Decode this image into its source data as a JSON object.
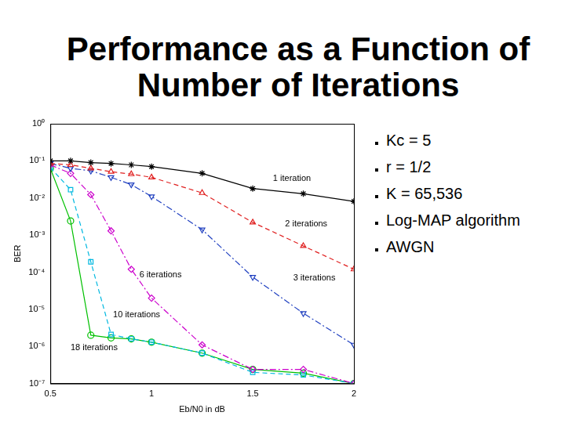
{
  "slide": {
    "title": "Performance as a Function of Number of Iterations",
    "bullets": [
      "Kc = 5",
      "r = 1/2",
      "K = 65,536",
      "Log-MAP algorithm",
      "AWGN"
    ]
  },
  "chart_data": {
    "type": "line",
    "log": "y",
    "grid": false,
    "x_label": "Eb/N0 in dB",
    "y_label": "BER",
    "xlim": [
      0.5,
      2
    ],
    "xticks": [
      0.5,
      1,
      1.5,
      2
    ],
    "ylim": [
      1e-07,
      1
    ],
    "yticks": [
      {
        "value": 1e-07,
        "label": "10⁻⁷"
      },
      {
        "value": 1e-06,
        "label": "10⁻⁶"
      },
      {
        "value": 1e-05,
        "label": "10⁻⁵"
      },
      {
        "value": 0.0001,
        "label": "10⁻⁴"
      },
      {
        "value": 0.001,
        "label": "10⁻³"
      },
      {
        "value": 0.01,
        "label": "10⁻²"
      },
      {
        "value": 0.1,
        "label": "10⁻¹"
      },
      {
        "value": 1,
        "label": "10⁰"
      }
    ],
    "x": [
      0.5,
      0.6,
      0.7,
      0.8,
      0.9,
      1.0,
      1.25,
      1.5,
      1.75,
      2.0
    ],
    "series": [
      {
        "name": "1 iteration",
        "color": "#000000",
        "marker": "star",
        "line_style": "solid",
        "label_at": [
          1.6,
          0.034
        ],
        "values": [
          0.1,
          0.1,
          0.09,
          0.085,
          0.078,
          0.07,
          0.046,
          0.018,
          0.013,
          0.0081
        ]
      },
      {
        "name": "2 iterations",
        "color": "#e02020",
        "marker": "triangle",
        "line_style": "dashed",
        "label_at": [
          1.66,
          0.002
        ],
        "values": [
          0.085,
          0.078,
          0.063,
          0.051,
          0.044,
          0.036,
          0.0137,
          0.0022,
          0.00051,
          0.00012
        ]
      },
      {
        "name": "3 iterations",
        "color": "#2040c0",
        "marker": "triangle_down",
        "line_style": "dashdot",
        "label_at": [
          1.7,
          7e-05
        ],
        "values": [
          0.085,
          0.063,
          0.054,
          0.036,
          0.023,
          0.011,
          0.0014,
          7.4e-05,
          7.8e-06,
          1.1e-06
        ]
      },
      {
        "name": "6 iterations",
        "color": "#cc00cc",
        "marker": "diamond",
        "line_style": "dashdot",
        "label_at": [
          0.94,
          8.5e-05
        ],
        "values": [
          0.078,
          0.046,
          0.0123,
          0.0013,
          0.00012,
          2e-05,
          1.1e-06,
          2.4e-07,
          2.4e-07,
          1e-07
        ]
      },
      {
        "name": "10 iterations",
        "color": "#00b8e0",
        "marker": "square",
        "line_style": "dashed",
        "label_at": [
          0.81,
          7e-06
        ],
        "values": [
          0.066,
          0.0167,
          0.00019,
          2.1e-06,
          1.6e-06,
          1.3e-06,
          6.6e-07,
          2e-07,
          1.7e-07,
          1e-07
        ]
      },
      {
        "name": "18 iterations",
        "color": "#00c000",
        "marker": "circle",
        "line_style": "solid",
        "label_at": [
          0.6,
          9e-07
        ],
        "values": [
          0.063,
          0.0024,
          2e-06,
          1.7e-06,
          1.6e-06,
          1.3e-06,
          6.6e-07,
          2.4e-07,
          1.9e-07,
          1e-07
        ]
      }
    ]
  }
}
